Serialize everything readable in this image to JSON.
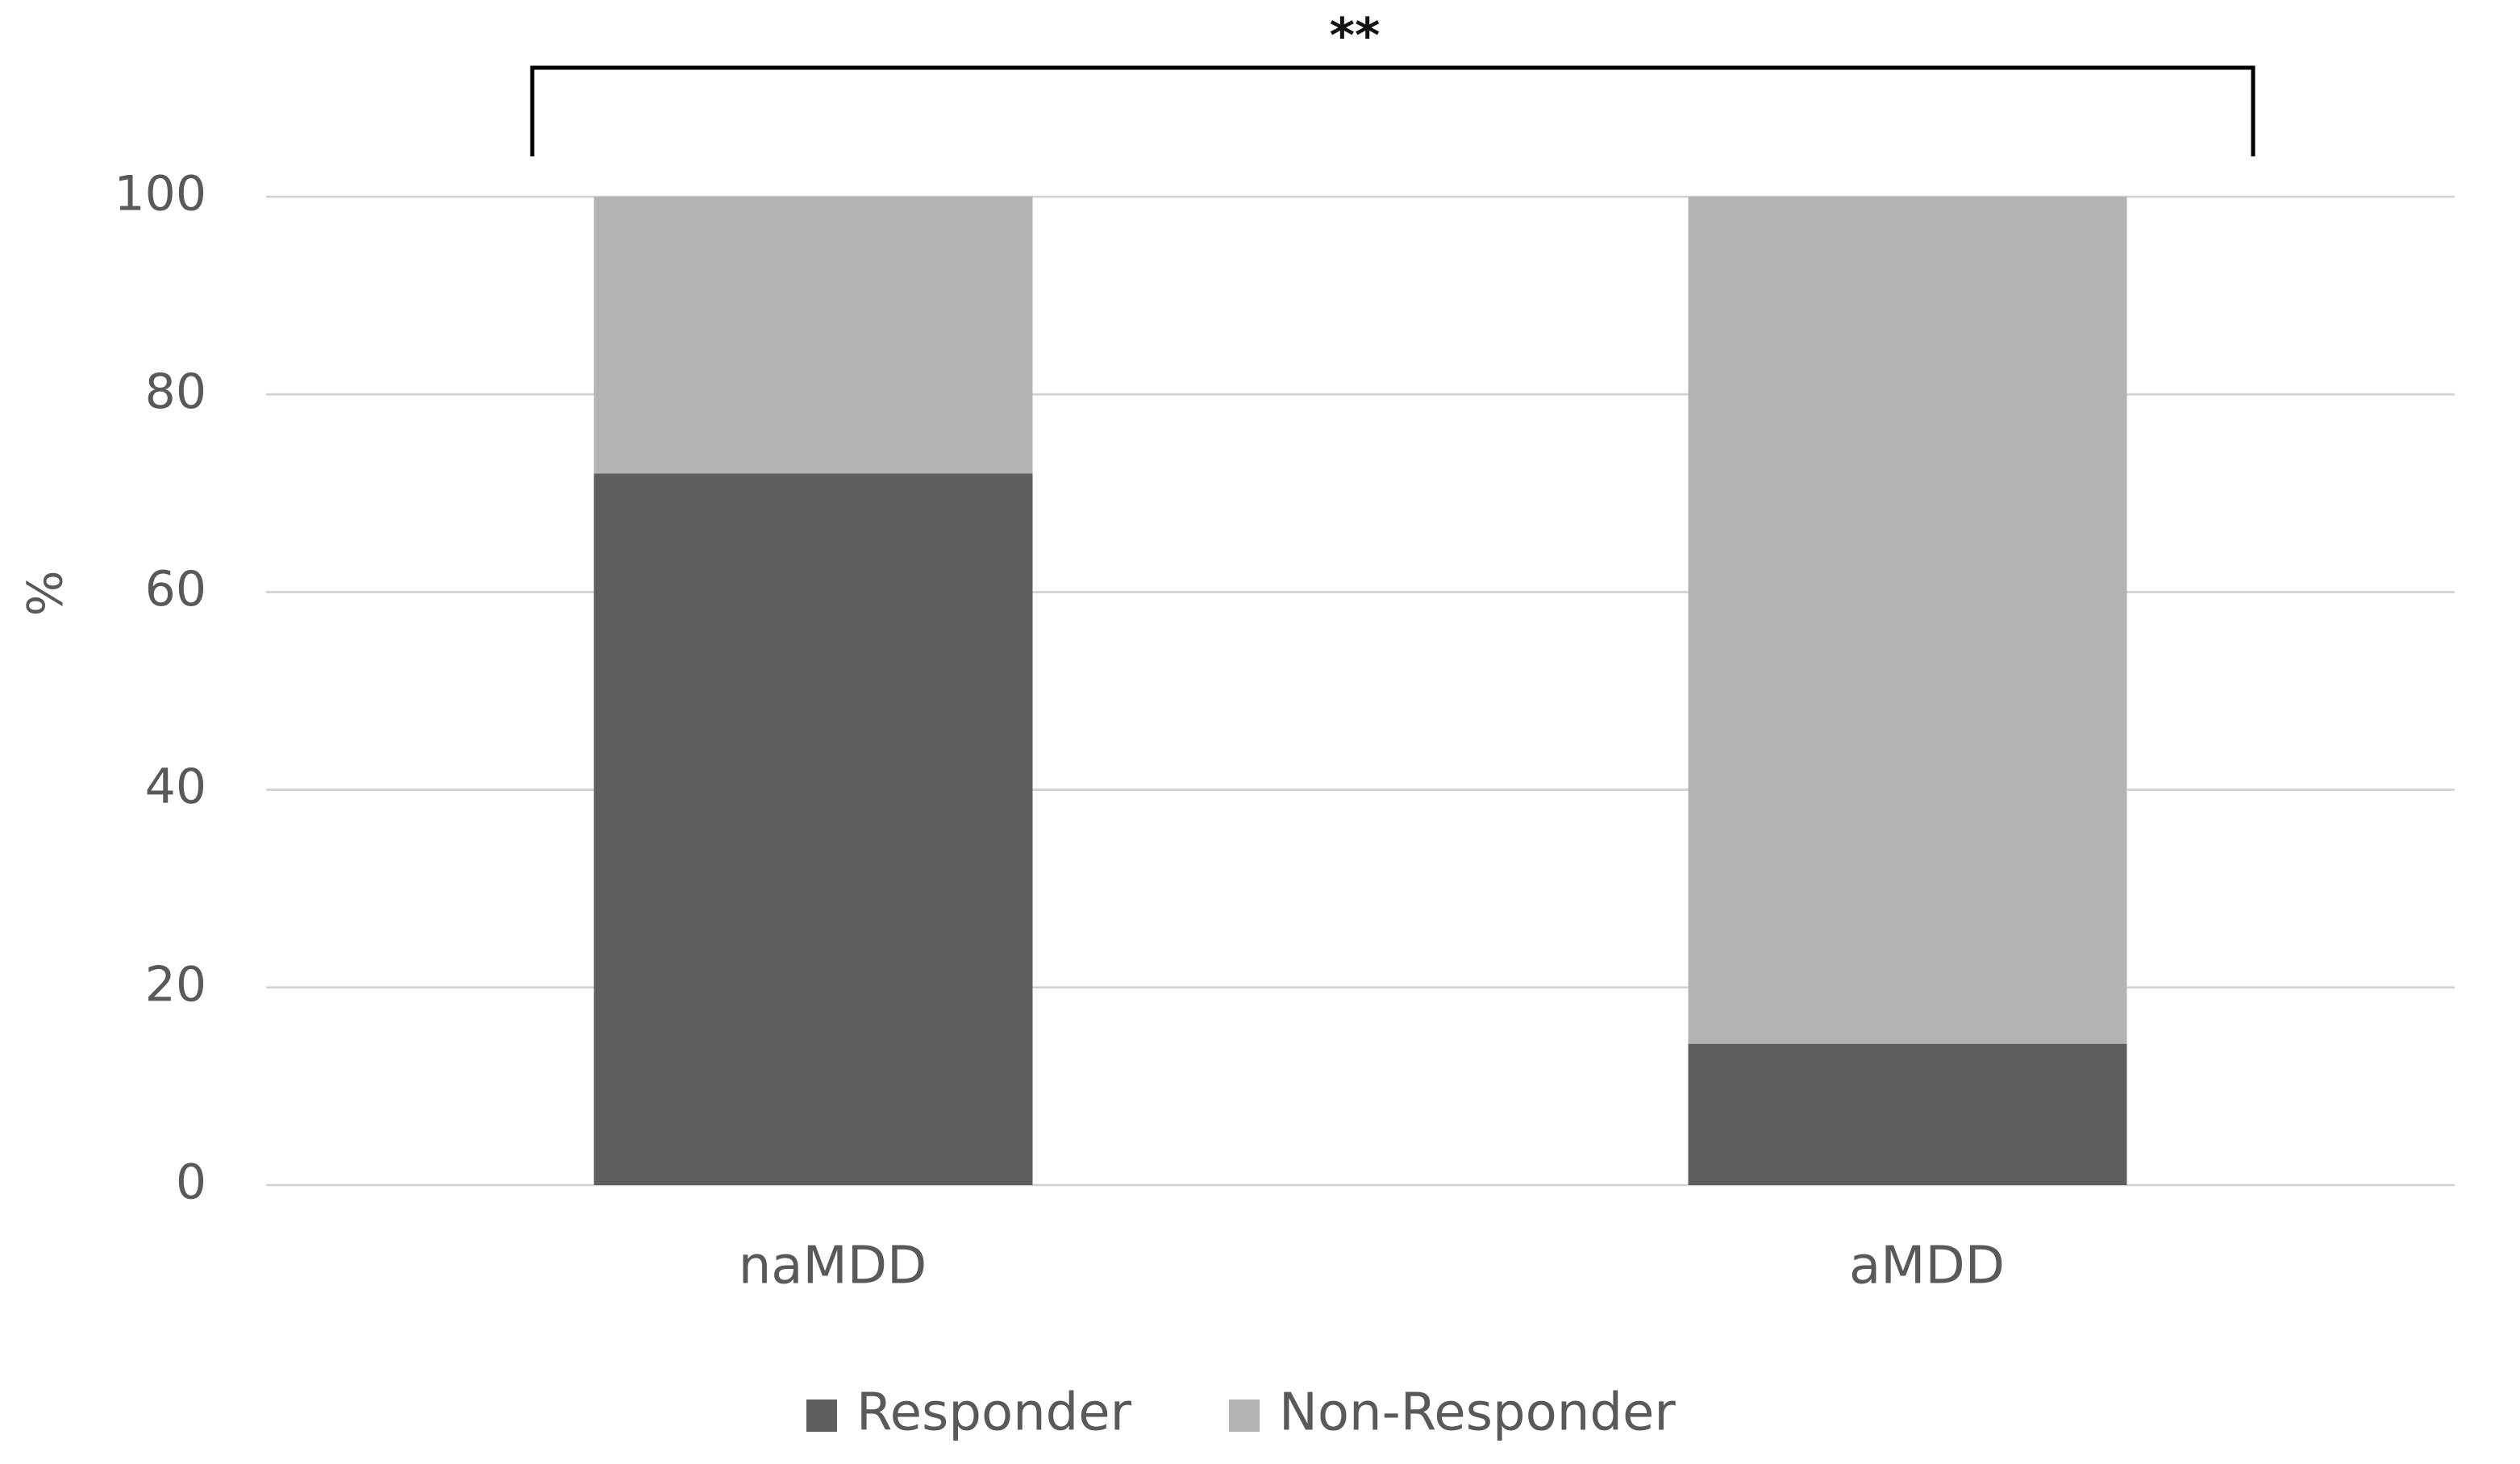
{
  "chart_data": {
    "type": "stacked_bar",
    "y_label": "%",
    "annotation": "**",
    "categories": [
      "naMDD",
      "aMDD"
    ],
    "series": [
      {
        "name": "Responder",
        "color": "#5e5e5e",
        "values": [
          72,
          14.3
        ]
      },
      {
        "name": "Non-Responder",
        "color": "#b3b3b3",
        "values": [
          28,
          85.7
        ]
      }
    ],
    "ylim": [
      0,
      100
    ],
    "yticks": [
      0,
      20,
      40,
      60,
      80,
      100
    ],
    "grid": true,
    "legend": "bottom"
  }
}
